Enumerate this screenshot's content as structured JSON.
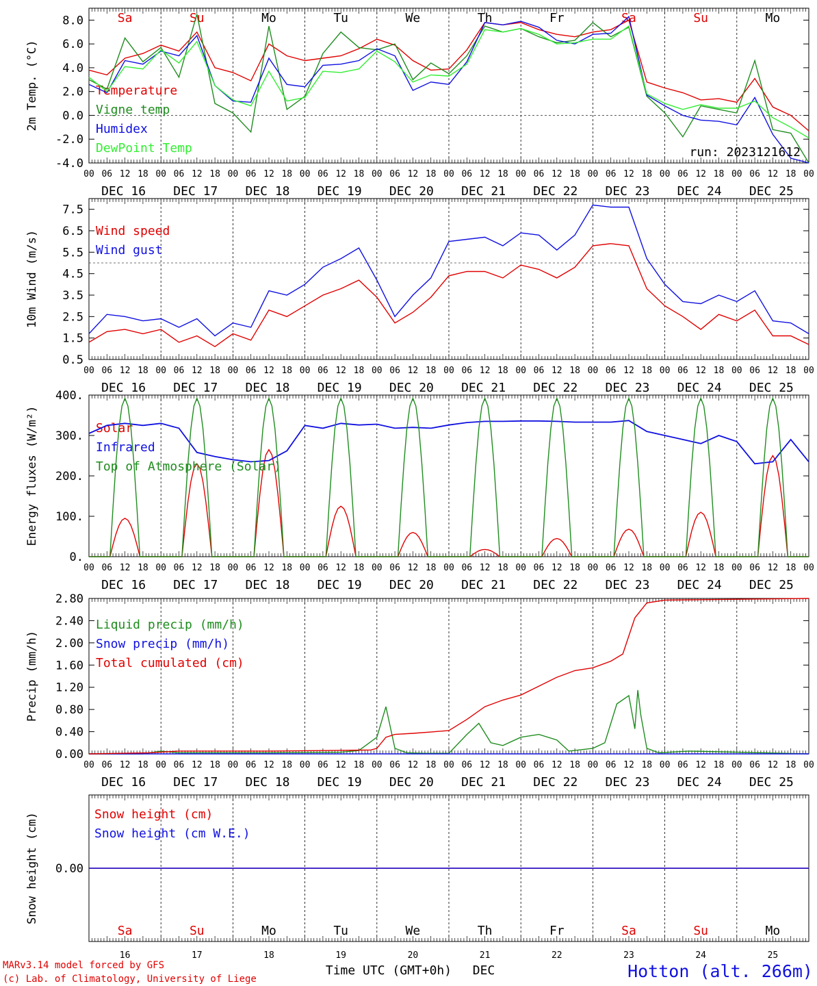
{
  "run_label": "run: 2023121612",
  "station_label": "Hotton (alt. 266m)",
  "credits": [
    "MARv3.14 model forced by GFS",
    "(c) Lab. of Climatology, University of Liege"
  ],
  "xaxis_title": "Time UTC (GMT+0h)",
  "xaxis_month": "DEC",
  "day_abbrev": [
    "Sa",
    "Su",
    "Mo",
    "Tu",
    "We",
    "Th",
    "Fr",
    "Sa",
    "Su",
    "Mo"
  ],
  "weekend_flags": [
    true,
    true,
    false,
    false,
    false,
    false,
    false,
    true,
    true,
    false
  ],
  "weekend_color": "#e00000",
  "day_labels": [
    "DEC 16",
    "DEC 17",
    "DEC 18",
    "DEC 19",
    "DEC 20",
    "DEC 21",
    "DEC 22",
    "DEC 23",
    "DEC 24",
    "DEC 25"
  ],
  "day_numbers": [
    "16",
    "17",
    "18",
    "19",
    "20",
    "21",
    "22",
    "23",
    "24",
    "25"
  ],
  "hour_ticks": [
    "00",
    "06",
    "12",
    "18"
  ],
  "last_tick": "00",
  "chart_data": [
    {
      "type": "line",
      "ylabel": "2m Temp. (°C)",
      "ylim": [
        -4.0,
        9.0
      ],
      "yticks": [
        "-4.0",
        "-2.0",
        "0.0",
        "2.0",
        "4.0",
        "6.0",
        "8.0"
      ],
      "ytick_values": [
        -4,
        -2,
        0,
        2,
        4,
        6,
        8
      ],
      "dashed_ref": 0.0,
      "x_unit": "hours since 2023-12-16 00 UTC",
      "series": [
        {
          "name": "Temperature",
          "color": "#e00000",
          "x": [
            0,
            6,
            12,
            18,
            24,
            30,
            36,
            42,
            48,
            54,
            60,
            66,
            72,
            78,
            84,
            90,
            96,
            102,
            108,
            114,
            120,
            126,
            132,
            138,
            144,
            150,
            156,
            162,
            168,
            174,
            180,
            186,
            192,
            198,
            204,
            210,
            216,
            222,
            228,
            234,
            240
          ],
          "values": [
            3.8,
            3.4,
            4.8,
            5.2,
            5.9,
            5.4,
            7.0,
            4.0,
            3.6,
            2.9,
            6.0,
            5.0,
            4.6,
            4.8,
            5.0,
            5.6,
            6.4,
            5.9,
            4.6,
            3.8,
            3.9,
            5.5,
            7.8,
            7.6,
            7.8,
            7.2,
            6.8,
            6.6,
            7.0,
            7.2,
            8.0,
            2.8,
            2.3,
            1.9,
            1.3,
            1.4,
            1.1,
            3.1,
            0.7,
            0.0,
            -1.3
          ]
        },
        {
          "name": "Vigne temp",
          "color": "#1e8c1e",
          "x": [
            0,
            6,
            12,
            18,
            24,
            30,
            36,
            42,
            48,
            54,
            60,
            66,
            72,
            78,
            84,
            90,
            96,
            102,
            108,
            114,
            120,
            126,
            132,
            138,
            144,
            150,
            156,
            162,
            168,
            174,
            180,
            186,
            192,
            198,
            204,
            210,
            216,
            222,
            228,
            234,
            240
          ],
          "values": [
            3.0,
            2.2,
            6.5,
            4.5,
            5.7,
            3.2,
            8.5,
            1.0,
            0.2,
            -1.4,
            7.5,
            0.5,
            1.6,
            5.2,
            7.0,
            5.7,
            5.5,
            6.0,
            3.0,
            4.4,
            3.5,
            5.0,
            7.5,
            7.0,
            7.3,
            6.6,
            6.1,
            6.3,
            7.8,
            6.6,
            7.4,
            1.6,
            0.2,
            -1.8,
            0.8,
            0.5,
            0.2,
            4.6,
            -1.2,
            -1.5,
            -4.0
          ]
        },
        {
          "name": "Humidex",
          "color": "#1010e0",
          "x": [
            0,
            6,
            12,
            18,
            24,
            30,
            36,
            42,
            48,
            54,
            60,
            66,
            72,
            78,
            84,
            90,
            96,
            102,
            108,
            114,
            120,
            126,
            132,
            138,
            144,
            150,
            156,
            162,
            168,
            174,
            180,
            186,
            192,
            198,
            204,
            210,
            216,
            222,
            228,
            234,
            240
          ],
          "values": [
            2.6,
            1.9,
            4.6,
            4.3,
            5.4,
            5.0,
            6.7,
            2.5,
            1.2,
            1.1,
            4.8,
            2.6,
            2.4,
            4.2,
            4.3,
            4.6,
            5.6,
            5.0,
            2.1,
            2.8,
            2.6,
            4.5,
            7.8,
            7.6,
            7.9,
            7.4,
            6.3,
            6.0,
            6.8,
            6.9,
            8.3,
            1.7,
            0.8,
            0.0,
            -0.4,
            -0.5,
            -0.8,
            1.5,
            -1.6,
            -3.6,
            -4.0
          ]
        },
        {
          "name": "DewPoint Temp",
          "color": "#33ee33",
          "x": [
            0,
            6,
            12,
            18,
            24,
            30,
            36,
            42,
            48,
            54,
            60,
            66,
            72,
            78,
            84,
            90,
            96,
            102,
            108,
            114,
            120,
            126,
            132,
            138,
            144,
            150,
            156,
            162,
            168,
            174,
            180,
            186,
            192,
            198,
            204,
            210,
            216,
            222,
            228,
            234,
            240
          ],
          "values": [
            3.2,
            2.0,
            4.1,
            3.9,
            5.5,
            4.4,
            6.2,
            2.5,
            1.3,
            0.8,
            3.7,
            1.2,
            1.5,
            3.7,
            3.6,
            3.9,
            5.4,
            4.5,
            2.8,
            3.4,
            3.3,
            4.3,
            7.2,
            7.0,
            7.3,
            6.8,
            6.0,
            6.1,
            6.4,
            6.4,
            7.5,
            1.8,
            1.0,
            0.5,
            0.9,
            0.6,
            0.6,
            1.2,
            -0.2,
            -1.0,
            -1.9
          ]
        }
      ]
    },
    {
      "type": "line",
      "ylabel": "10m Wind (m/s)",
      "ylim": [
        0.5,
        8.0
      ],
      "yticks": [
        "0.5",
        "1.5",
        "2.5",
        "3.5",
        "4.5",
        "5.5",
        "6.5",
        "7.5"
      ],
      "ytick_values": [
        0.5,
        1.5,
        2.5,
        3.5,
        4.5,
        5.5,
        6.5,
        7.5
      ],
      "dashed_ref": 5.0,
      "x_unit": "hours since 2023-12-16 00 UTC",
      "series": [
        {
          "name": "Wind speed",
          "color": "#e00000",
          "x": [
            0,
            6,
            12,
            18,
            24,
            30,
            36,
            42,
            48,
            54,
            60,
            66,
            72,
            78,
            84,
            90,
            96,
            102,
            108,
            114,
            120,
            126,
            132,
            138,
            144,
            150,
            156,
            162,
            168,
            174,
            180,
            186,
            192,
            198,
            204,
            210,
            216,
            222,
            228,
            234,
            240
          ],
          "values": [
            1.3,
            1.8,
            1.9,
            1.7,
            1.9,
            1.3,
            1.6,
            1.1,
            1.7,
            1.4,
            2.8,
            2.5,
            3.0,
            3.5,
            3.8,
            4.2,
            3.4,
            2.2,
            2.7,
            3.4,
            4.4,
            4.6,
            4.6,
            4.3,
            4.9,
            4.7,
            4.3,
            4.8,
            5.8,
            5.9,
            5.8,
            3.8,
            3.0,
            2.5,
            1.9,
            2.6,
            2.3,
            2.8,
            1.6,
            1.6,
            1.2
          ]
        },
        {
          "name": "Wind gust",
          "color": "#1010e0",
          "x": [
            0,
            6,
            12,
            18,
            24,
            30,
            36,
            42,
            48,
            54,
            60,
            66,
            72,
            78,
            84,
            90,
            96,
            102,
            108,
            114,
            120,
            126,
            132,
            138,
            144,
            150,
            156,
            162,
            168,
            174,
            180,
            186,
            192,
            198,
            204,
            210,
            216,
            222,
            228,
            234,
            240
          ],
          "values": [
            1.7,
            2.6,
            2.5,
            2.3,
            2.4,
            2.0,
            2.4,
            1.6,
            2.2,
            2.0,
            3.7,
            3.5,
            4.0,
            4.8,
            5.2,
            5.7,
            4.2,
            2.5,
            3.5,
            4.3,
            6.0,
            6.1,
            6.2,
            5.8,
            6.4,
            6.3,
            5.6,
            6.3,
            7.7,
            7.6,
            7.6,
            5.2,
            4.0,
            3.2,
            3.1,
            3.5,
            3.2,
            3.7,
            2.3,
            2.2,
            1.7
          ]
        }
      ]
    },
    {
      "type": "line",
      "ylabel": "Energy fluxes (W/m²)",
      "ylim": [
        0,
        400
      ],
      "yticks": [
        "0.",
        "100.",
        "200.",
        "300.",
        "400."
      ],
      "ytick_values": [
        0,
        100,
        200,
        300,
        400
      ],
      "x_unit": "hours since 2023-12-16 00 UTC",
      "series": [
        {
          "name": "Solar",
          "color": "#e00000",
          "kind": "daily_peak",
          "days": [
            0,
            1,
            2,
            3,
            4,
            5,
            6,
            7,
            8,
            9
          ],
          "peaks": [
            95,
            230,
            265,
            125,
            60,
            18,
            45,
            68,
            110,
            250
          ]
        },
        {
          "name": "Infrared",
          "color": "#1010e0",
          "x": [
            0,
            6,
            12,
            18,
            24,
            30,
            36,
            42,
            48,
            54,
            60,
            66,
            72,
            78,
            84,
            90,
            96,
            102,
            108,
            114,
            120,
            126,
            132,
            138,
            144,
            150,
            156,
            162,
            168,
            174,
            180,
            186,
            192,
            198,
            204,
            210,
            216,
            222,
            228,
            234,
            240
          ],
          "values": [
            305,
            325,
            330,
            325,
            330,
            318,
            258,
            248,
            240,
            235,
            238,
            262,
            325,
            318,
            330,
            326,
            328,
            318,
            320,
            318,
            326,
            332,
            335,
            335,
            336,
            336,
            335,
            333,
            333,
            333,
            337,
            310,
            300,
            290,
            280,
            300,
            285,
            230,
            235,
            290,
            235
          ]
        },
        {
          "name": "Top of Atmosphere (Solar)",
          "color": "#1e8c1e",
          "kind": "daily_peak",
          "days": [
            0,
            1,
            2,
            3,
            4,
            5,
            6,
            7,
            8,
            9
          ],
          "peaks": [
            392,
            392,
            392,
            392,
            392,
            392,
            392,
            392,
            392,
            392
          ]
        }
      ]
    },
    {
      "type": "line",
      "ylabel": "Precip (mm/h)",
      "ylim": [
        0,
        2.8
      ],
      "yticks": [
        "0.00",
        "0.40",
        "0.80",
        "1.20",
        "1.60",
        "2.00",
        "2.40",
        "2.80"
      ],
      "ytick_values": [
        0,
        0.4,
        0.8,
        1.2,
        1.6,
        2.0,
        2.4,
        2.8
      ],
      "x_unit": "hours since 2023-12-16 00 UTC",
      "series": [
        {
          "name": "Liquid precip (mm/h)",
          "color": "#1e8c1e",
          "x": [
            0,
            18,
            24,
            30,
            60,
            84,
            90,
            96,
            99,
            102,
            106,
            112,
            120,
            126,
            130,
            134,
            138,
            144,
            150,
            156,
            160,
            168,
            172,
            176,
            180,
            182,
            183,
            184,
            186,
            190,
            200,
            240
          ],
          "values": [
            0,
            0,
            0.05,
            0.02,
            0.02,
            0.03,
            0.06,
            0.3,
            0.85,
            0.1,
            0.02,
            0.01,
            0.01,
            0.35,
            0.55,
            0.2,
            0.15,
            0.3,
            0.35,
            0.25,
            0.05,
            0.1,
            0.2,
            0.9,
            1.05,
            0.45,
            1.15,
            0.7,
            0.1,
            0.02,
            0.05,
            0.0
          ]
        },
        {
          "name": "Snow precip (mm/h)",
          "color": "#1010e0",
          "x": [
            0,
            240
          ],
          "values": [
            0,
            0
          ]
        },
        {
          "name": "Total cumulated (cm)",
          "color": "#e00000",
          "x": [
            0,
            20,
            30,
            60,
            80,
            94,
            96,
            99,
            102,
            108,
            120,
            126,
            132,
            138,
            144,
            150,
            156,
            162,
            168,
            174,
            178,
            182,
            186,
            192,
            240
          ],
          "values": [
            0,
            0.02,
            0.05,
            0.05,
            0.06,
            0.07,
            0.1,
            0.3,
            0.35,
            0.37,
            0.42,
            0.62,
            0.85,
            0.97,
            1.06,
            1.22,
            1.38,
            1.5,
            1.55,
            1.67,
            1.8,
            2.45,
            2.72,
            2.77,
            2.8
          ]
        }
      ]
    },
    {
      "type": "line",
      "ylabel": "Snow height (cm)",
      "ylim": [
        -1,
        1
      ],
      "yticks": [
        "0.00"
      ],
      "ytick_values": [
        0
      ],
      "x_unit": "hours since 2023-12-16 00 UTC",
      "series": [
        {
          "name": "Snow height (cm)",
          "color": "#e00000",
          "x": [
            0,
            240
          ],
          "values": [
            0,
            0
          ]
        },
        {
          "name": "Snow height (cm W.E.)",
          "color": "#1010e0",
          "x": [
            0,
            240
          ],
          "values": [
            0,
            0
          ]
        }
      ]
    }
  ]
}
